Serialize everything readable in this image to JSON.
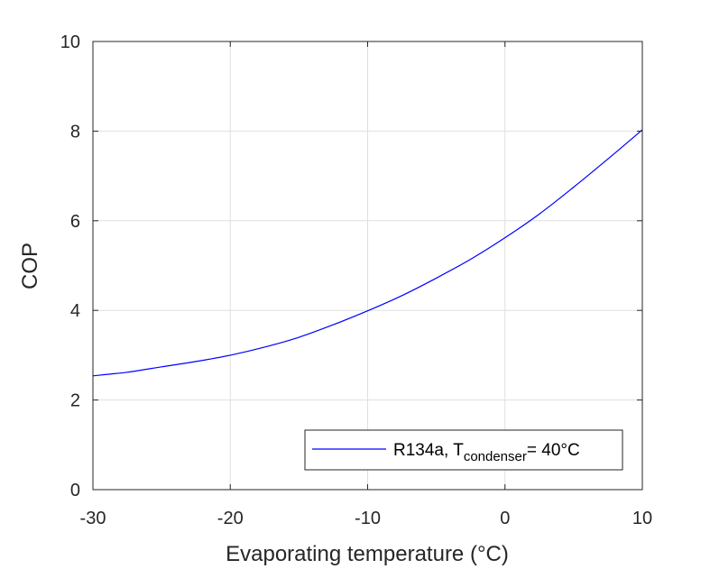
{
  "chart_data": {
    "type": "line",
    "xlabel": "Evaporating temperature (°C)",
    "ylabel": "COP",
    "xlim": [
      -30,
      10
    ],
    "ylim": [
      0,
      10
    ],
    "xticks": [
      -30,
      -20,
      -10,
      0,
      10
    ],
    "xtick_labels": [
      "-30",
      "-20",
      "-10",
      "0",
      "10"
    ],
    "yticks": [
      0,
      2,
      4,
      6,
      8,
      10
    ],
    "ytick_labels": [
      "0",
      "2",
      "4",
      "6",
      "8",
      "10"
    ],
    "grid": true,
    "legend_position": "bottom-right",
    "series": [
      {
        "legend": {
          "main": "R134a, T",
          "sub": "condenser",
          "suffix": "= 40°C"
        },
        "color": "#0000ff",
        "x": [
          -30,
          -27.5,
          -25,
          -22.5,
          -20,
          -17.5,
          -15,
          -12.5,
          -10,
          -7.5,
          -5,
          -2.5,
          0,
          2.5,
          5,
          7.5,
          10
        ],
        "y": [
          2.54,
          2.62,
          2.74,
          2.86,
          3.0,
          3.18,
          3.4,
          3.68,
          3.99,
          4.33,
          4.72,
          5.14,
          5.62,
          6.15,
          6.75,
          7.38,
          8.03
        ]
      }
    ]
  }
}
